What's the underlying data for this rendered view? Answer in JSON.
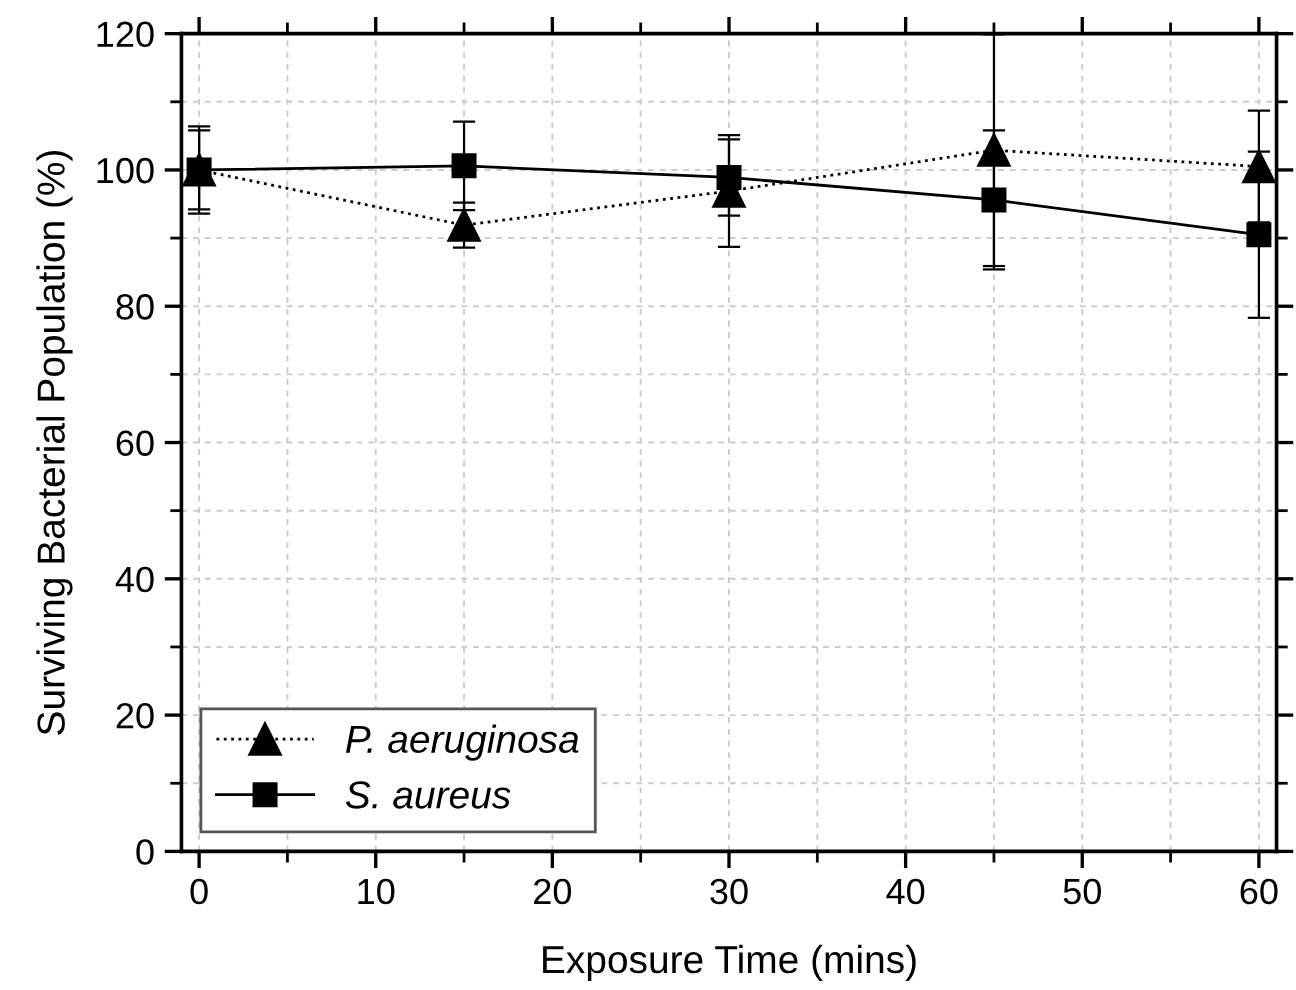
{
  "chart_data": {
    "type": "line",
    "xlabel": "Exposure Time (mins)",
    "ylabel": "Surviving Bacterial Population (%)",
    "x": [
      0,
      15,
      30,
      45,
      60
    ],
    "series": [
      {
        "name": "P. aeruginosa",
        "color": "#000000",
        "marker": "triangle",
        "line_style": "dotted",
        "values": [
          100,
          91.9,
          96.9,
          102.9,
          100.5
        ],
        "errors": [
          6.4,
          3.3,
          8.2,
          17,
          8.2
        ]
      },
      {
        "name": "S. aureus",
        "color": "#000000",
        "marker": "square",
        "line_style": "solid",
        "values": [
          100,
          100.6,
          98.9,
          95.6,
          90.5
        ],
        "errors": [
          5.8,
          6.5,
          5.6,
          10.2,
          12.2
        ]
      }
    ],
    "xlim": [
      -1,
      61
    ],
    "ylim": [
      0,
      120
    ],
    "xticks": [
      0,
      10,
      20,
      30,
      40,
      50,
      60
    ],
    "yticks": [
      0,
      20,
      40,
      60,
      80,
      100,
      120
    ],
    "grid": true,
    "legend": "bottom left"
  }
}
